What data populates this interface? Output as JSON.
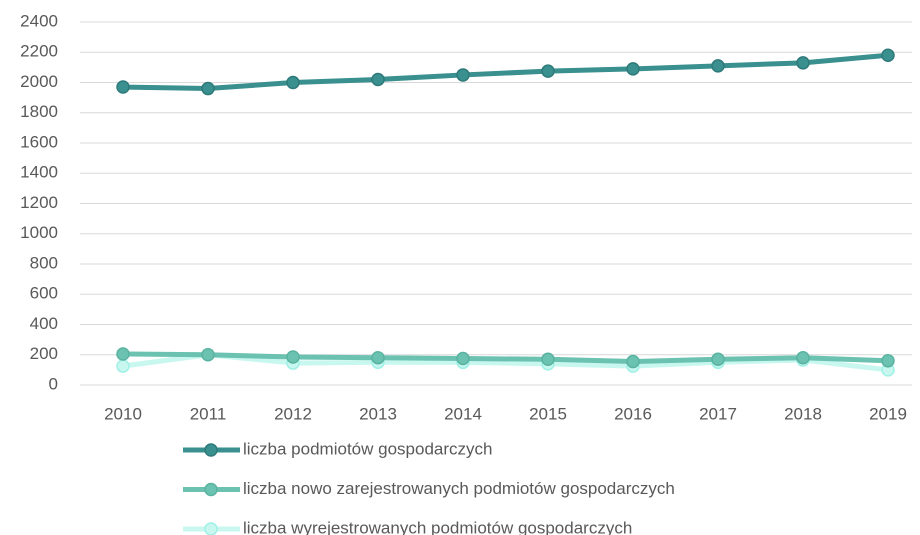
{
  "chart_data": {
    "type": "line",
    "categories": [
      "2010",
      "2011",
      "2012",
      "2013",
      "2014",
      "2015",
      "2016",
      "2017",
      "2018",
      "2019"
    ],
    "series": [
      {
        "name": "liczba podmiotów gospodarczych",
        "color": "#3a8f8f",
        "values": [
          1970,
          1960,
          2000,
          2020,
          2050,
          2075,
          2090,
          2110,
          2130,
          2180
        ]
      },
      {
        "name": "liczba nowo zarejestrowanych podmiotów gospodarczych",
        "color": "#6cc2b0",
        "values": [
          205,
          200,
          185,
          180,
          175,
          170,
          155,
          170,
          180,
          160
        ]
      },
      {
        "name": "liczba wyrejestrowanych podmiotów gospodarczych",
        "color": "#c8f7f0",
        "values": [
          125,
          200,
          145,
          150,
          150,
          140,
          125,
          150,
          165,
          100
        ]
      }
    ],
    "ylim": [
      0,
      2400
    ],
    "yticks": [
      0,
      200,
      400,
      600,
      800,
      1000,
      1200,
      1400,
      1600,
      1800,
      2000,
      2200,
      2400
    ],
    "grid": true,
    "legend": "bottom"
  }
}
